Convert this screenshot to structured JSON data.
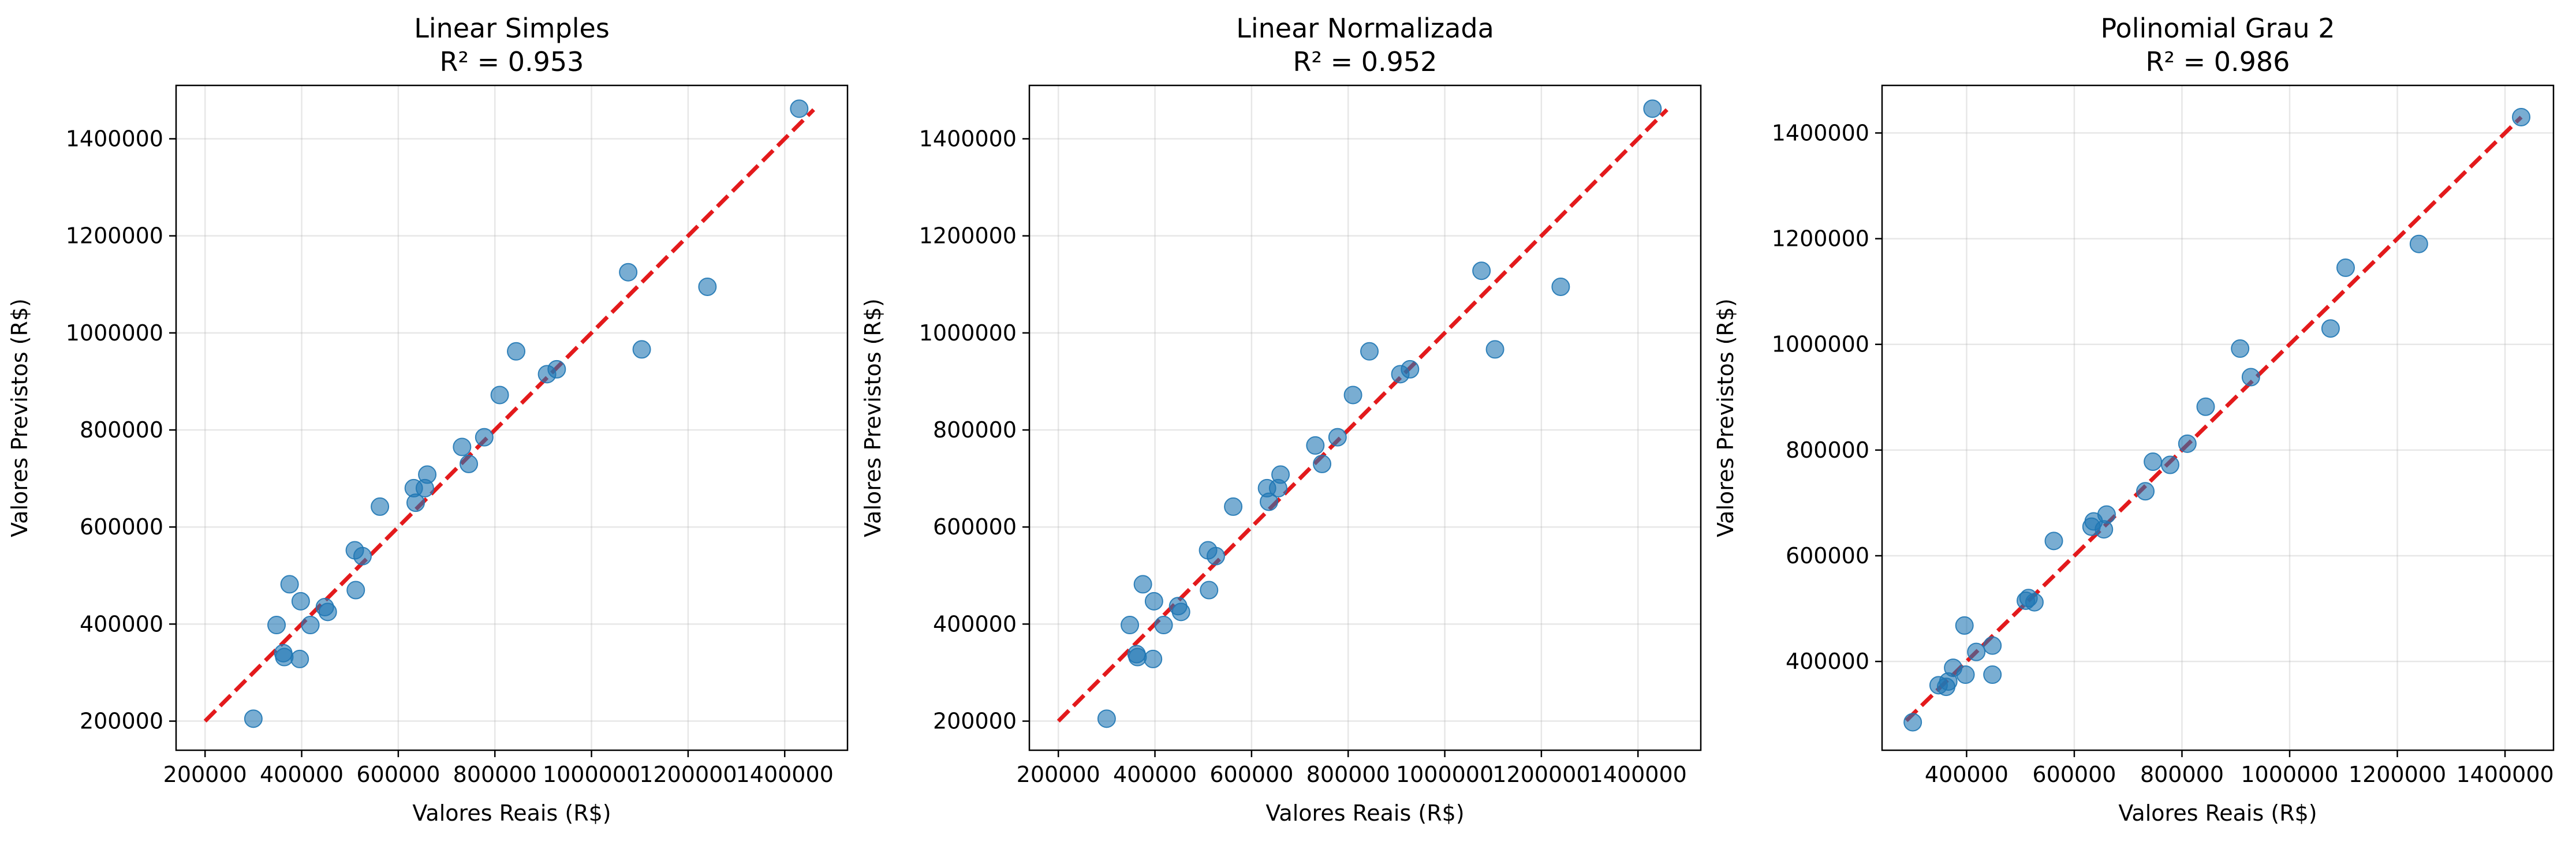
{
  "chart_data": [
    {
      "type": "scatter",
      "title": "Linear Simples",
      "subtitle": "R² = 0.953",
      "xlabel": "Valores Reais (R$)",
      "ylabel": "Valores Previstos (R$)",
      "xlim": [
        140000,
        1530000
      ],
      "ylim": [
        140000,
        1510000
      ],
      "xticks": [
        200000,
        400000,
        600000,
        800000,
        1000000,
        1200000,
        1400000
      ],
      "yticks": [
        200000,
        400000,
        600000,
        800000,
        1000000,
        1200000,
        1400000
      ],
      "xtick_labels": [
        "200000",
        "400000",
        "600000",
        "800000",
        "1000000",
        "1200000",
        "1400000"
      ],
      "ytick_labels": [
        "200000",
        "400000",
        "600000",
        "800000",
        "1000000",
        "1200000",
        "1400000"
      ],
      "reference_line": {
        "x": [
          200000,
          1460000
        ],
        "y": [
          200000,
          1460000
        ],
        "color": "#e31a1c",
        "style": "dashed"
      },
      "point_color": "#1f77b4",
      "grid": true,
      "points": [
        {
          "x": 300000,
          "y": 205000
        },
        {
          "x": 348000,
          "y": 398000
        },
        {
          "x": 362000,
          "y": 340000
        },
        {
          "x": 364000,
          "y": 332000
        },
        {
          "x": 375000,
          "y": 482000
        },
        {
          "x": 396000,
          "y": 328000
        },
        {
          "x": 398000,
          "y": 447000
        },
        {
          "x": 418000,
          "y": 398000
        },
        {
          "x": 448000,
          "y": 435000
        },
        {
          "x": 454000,
          "y": 425000
        },
        {
          "x": 510000,
          "y": 552000
        },
        {
          "x": 512000,
          "y": 470000
        },
        {
          "x": 526000,
          "y": 540000
        },
        {
          "x": 562000,
          "y": 642000
        },
        {
          "x": 632000,
          "y": 680000
        },
        {
          "x": 636000,
          "y": 650000
        },
        {
          "x": 655000,
          "y": 680000
        },
        {
          "x": 660000,
          "y": 708000
        },
        {
          "x": 732000,
          "y": 765000
        },
        {
          "x": 746000,
          "y": 730000
        },
        {
          "x": 778000,
          "y": 785000
        },
        {
          "x": 810000,
          "y": 872000
        },
        {
          "x": 844000,
          "y": 962000
        },
        {
          "x": 908000,
          "y": 915000
        },
        {
          "x": 928000,
          "y": 925000
        },
        {
          "x": 1076000,
          "y": 1125000
        },
        {
          "x": 1104000,
          "y": 966000
        },
        {
          "x": 1240000,
          "y": 1095000
        },
        {
          "x": 1430000,
          "y": 1462000
        }
      ]
    },
    {
      "type": "scatter",
      "title": "Linear Normalizada",
      "subtitle": "R² = 0.952",
      "xlabel": "Valores Reais (R$)",
      "ylabel": "Valores Previstos (R$)",
      "xlim": [
        140000,
        1530000
      ],
      "ylim": [
        140000,
        1510000
      ],
      "xticks": [
        200000,
        400000,
        600000,
        800000,
        1000000,
        1200000,
        1400000
      ],
      "yticks": [
        200000,
        400000,
        600000,
        800000,
        1000000,
        1200000,
        1400000
      ],
      "xtick_labels": [
        "200000",
        "400000",
        "600000",
        "800000",
        "1000000",
        "1200000",
        "1400000"
      ],
      "ytick_labels": [
        "200000",
        "400000",
        "600000",
        "800000",
        "1000000",
        "1200000",
        "1400000"
      ],
      "reference_line": {
        "x": [
          200000,
          1460000
        ],
        "y": [
          200000,
          1460000
        ],
        "color": "#e31a1c",
        "style": "dashed"
      },
      "point_color": "#1f77b4",
      "grid": true,
      "points": [
        {
          "x": 300000,
          "y": 205000
        },
        {
          "x": 348000,
          "y": 398000
        },
        {
          "x": 362000,
          "y": 338000
        },
        {
          "x": 364000,
          "y": 332000
        },
        {
          "x": 375000,
          "y": 482000
        },
        {
          "x": 396000,
          "y": 328000
        },
        {
          "x": 398000,
          "y": 447000
        },
        {
          "x": 418000,
          "y": 398000
        },
        {
          "x": 448000,
          "y": 437000
        },
        {
          "x": 454000,
          "y": 425000
        },
        {
          "x": 510000,
          "y": 552000
        },
        {
          "x": 512000,
          "y": 470000
        },
        {
          "x": 526000,
          "y": 540000
        },
        {
          "x": 562000,
          "y": 642000
        },
        {
          "x": 632000,
          "y": 680000
        },
        {
          "x": 636000,
          "y": 652000
        },
        {
          "x": 655000,
          "y": 680000
        },
        {
          "x": 660000,
          "y": 708000
        },
        {
          "x": 732000,
          "y": 768000
        },
        {
          "x": 746000,
          "y": 730000
        },
        {
          "x": 778000,
          "y": 785000
        },
        {
          "x": 810000,
          "y": 872000
        },
        {
          "x": 844000,
          "y": 962000
        },
        {
          "x": 908000,
          "y": 915000
        },
        {
          "x": 928000,
          "y": 925000
        },
        {
          "x": 1076000,
          "y": 1128000
        },
        {
          "x": 1104000,
          "y": 966000
        },
        {
          "x": 1240000,
          "y": 1095000
        },
        {
          "x": 1430000,
          "y": 1462000
        }
      ]
    },
    {
      "type": "scatter",
      "title": "Polinomial Grau 2",
      "subtitle": "R² = 0.986",
      "xlabel": "Valores Reais (R$)",
      "ylabel": "Valores Previstos (R$)",
      "xlim": [
        243000,
        1490000
      ],
      "ylim": [
        232000,
        1490000
      ],
      "xticks": [
        400000,
        600000,
        800000,
        1000000,
        1200000,
        1400000
      ],
      "yticks": [
        400000,
        600000,
        800000,
        1000000,
        1200000,
        1400000
      ],
      "xtick_labels": [
        "400000",
        "600000",
        "800000",
        "1000000",
        "1200000",
        "1400000"
      ],
      "ytick_labels": [
        "400000",
        "600000",
        "800000",
        "1000000",
        "1200000",
        "1400000"
      ],
      "reference_line": {
        "x": [
          288000,
          1430000
        ],
        "y": [
          288000,
          1430000
        ],
        "color": "#e31a1c",
        "style": "dashed"
      },
      "point_color": "#1f77b4",
      "grid": true,
      "points": [
        {
          "x": 300000,
          "y": 285000
        },
        {
          "x": 348000,
          "y": 355000
        },
        {
          "x": 362000,
          "y": 352000
        },
        {
          "x": 366000,
          "y": 362000
        },
        {
          "x": 375000,
          "y": 388000
        },
        {
          "x": 396000,
          "y": 468000
        },
        {
          "x": 398000,
          "y": 375000
        },
        {
          "x": 418000,
          "y": 418000
        },
        {
          "x": 448000,
          "y": 430000
        },
        {
          "x": 448000,
          "y": 375000
        },
        {
          "x": 510000,
          "y": 515000
        },
        {
          "x": 515000,
          "y": 520000
        },
        {
          "x": 526000,
          "y": 512000
        },
        {
          "x": 562000,
          "y": 628000
        },
        {
          "x": 632000,
          "y": 655000
        },
        {
          "x": 636000,
          "y": 665000
        },
        {
          "x": 655000,
          "y": 650000
        },
        {
          "x": 660000,
          "y": 678000
        },
        {
          "x": 732000,
          "y": 722000
        },
        {
          "x": 746000,
          "y": 778000
        },
        {
          "x": 778000,
          "y": 772000
        },
        {
          "x": 810000,
          "y": 812000
        },
        {
          "x": 844000,
          "y": 882000
        },
        {
          "x": 908000,
          "y": 992000
        },
        {
          "x": 928000,
          "y": 938000
        },
        {
          "x": 1076000,
          "y": 1030000
        },
        {
          "x": 1104000,
          "y": 1145000
        },
        {
          "x": 1240000,
          "y": 1190000
        },
        {
          "x": 1430000,
          "y": 1430000
        }
      ]
    }
  ]
}
